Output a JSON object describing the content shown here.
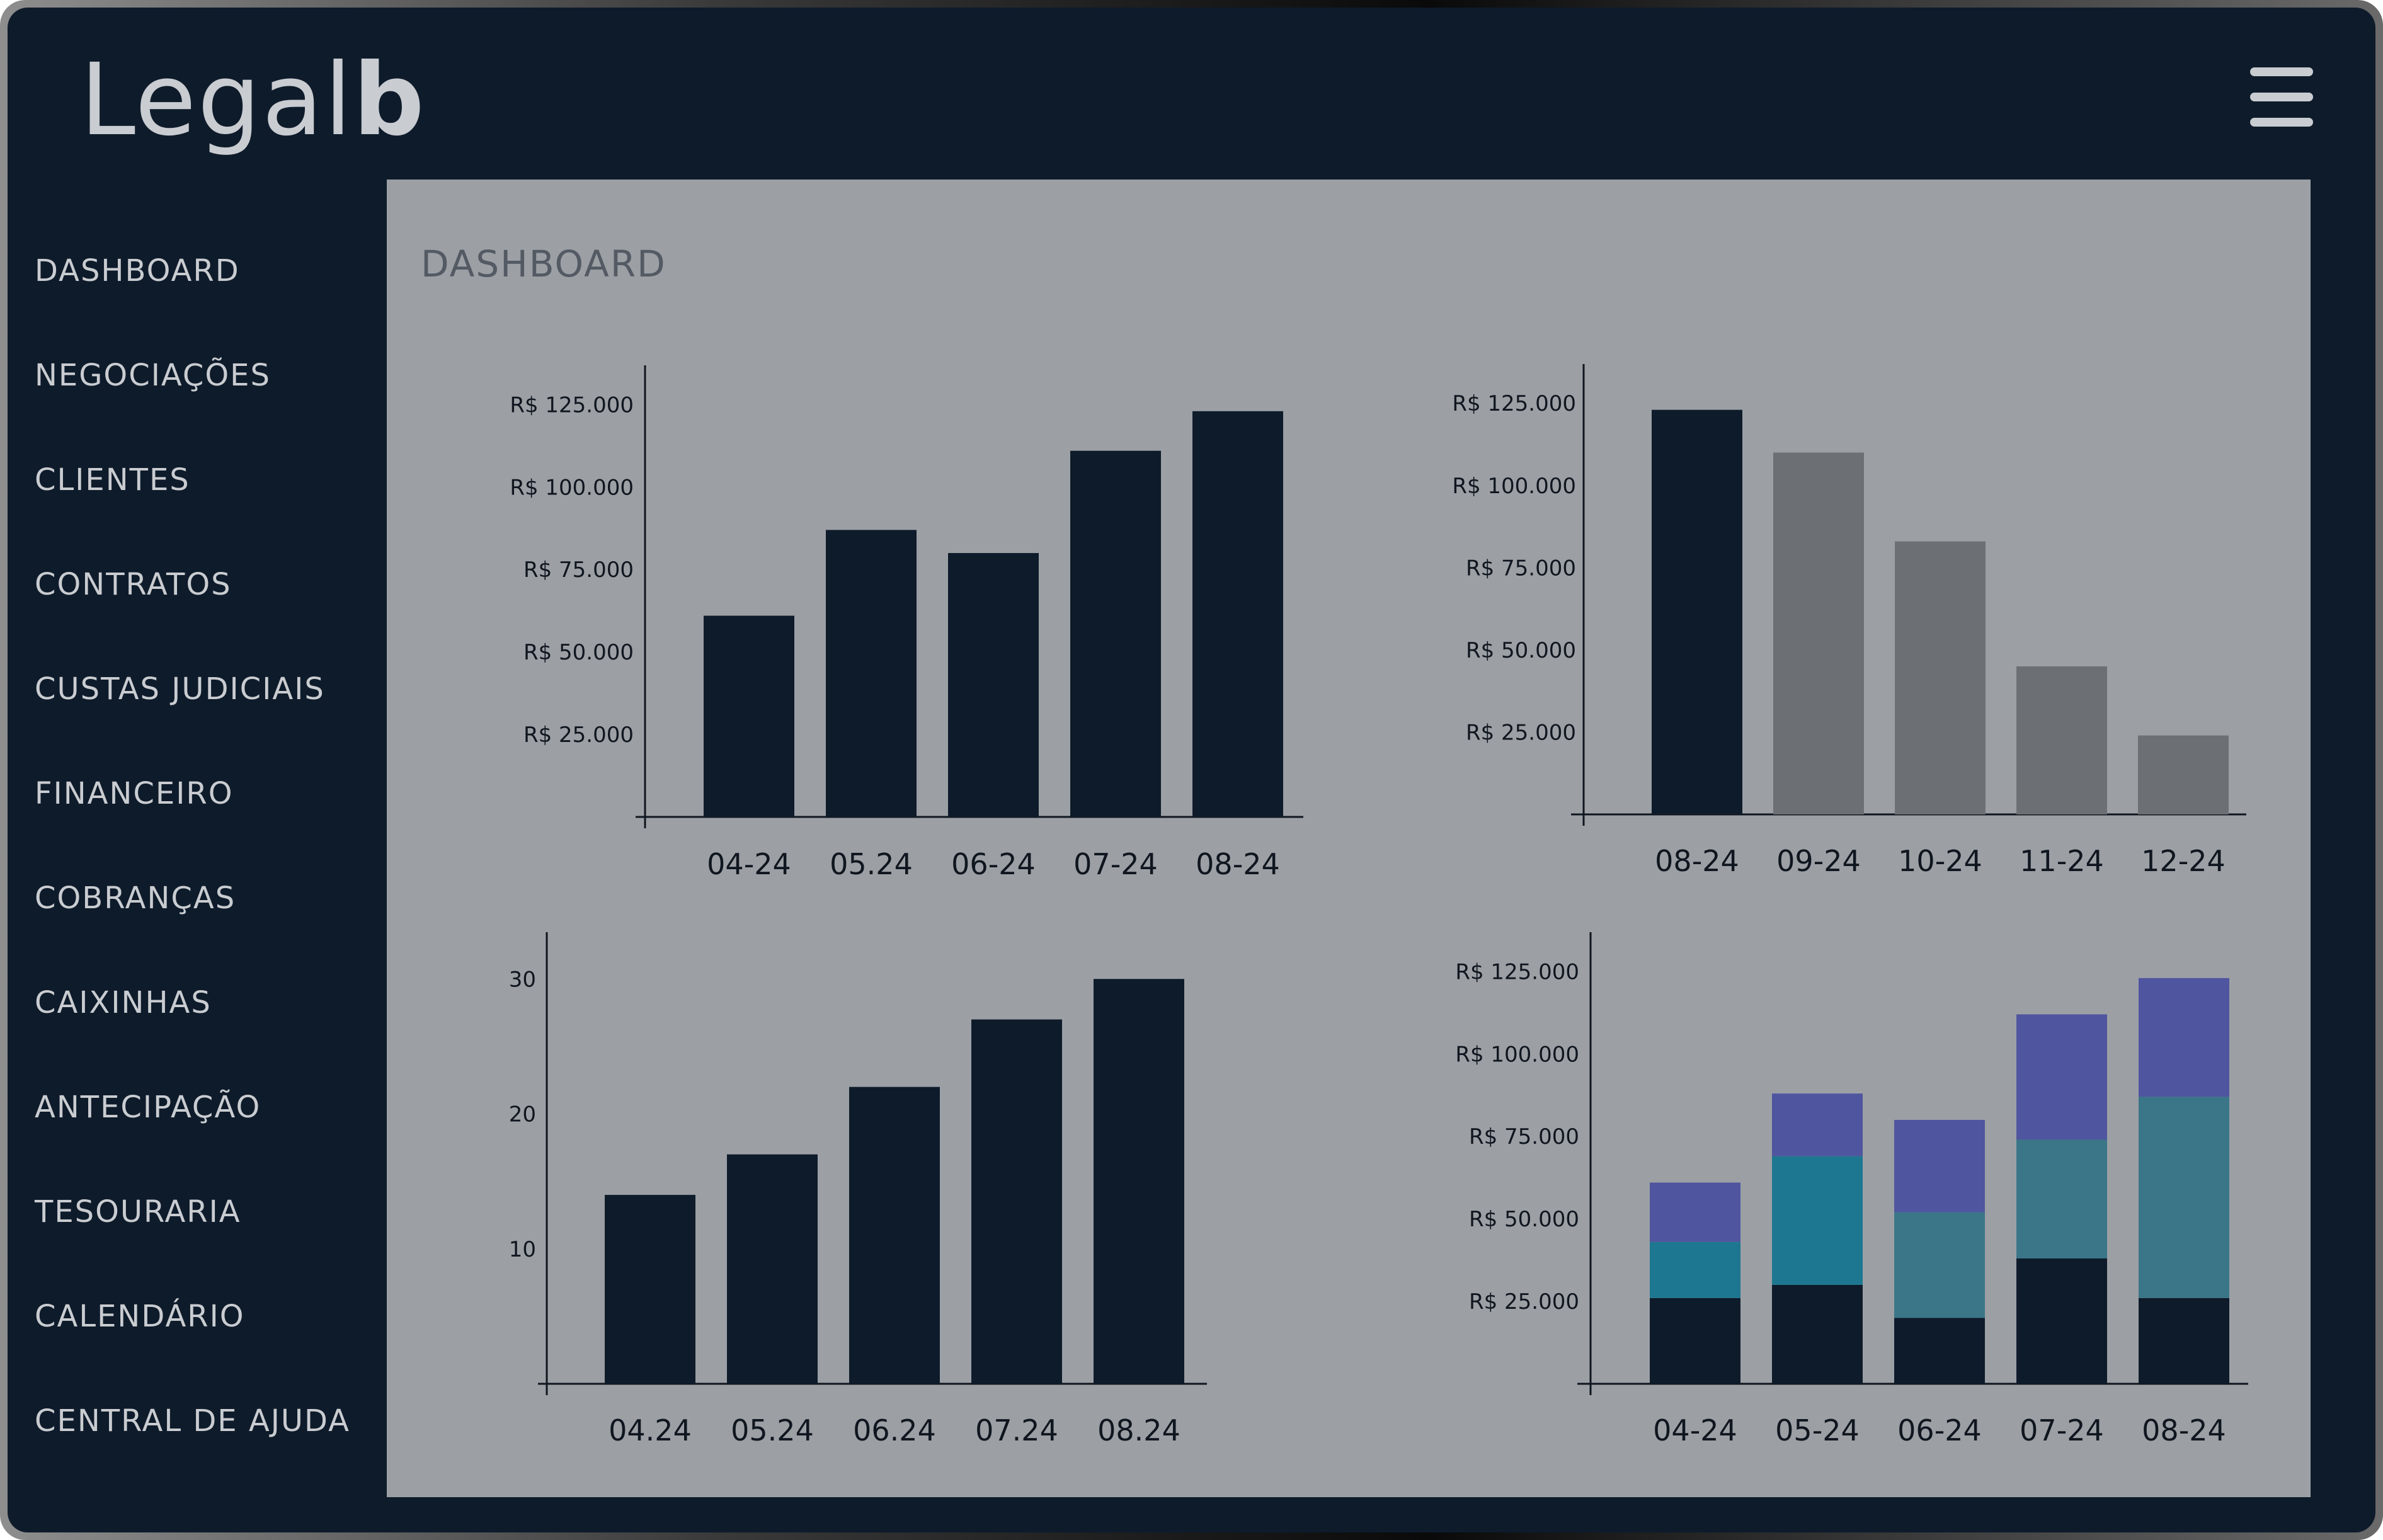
{
  "app": {
    "logo_text": "Legal",
    "logo_bold": "b",
    "menu_icon": "hamburger-icon"
  },
  "sidebar": {
    "items": [
      {
        "label": "DASHBOARD"
      },
      {
        "label": "NEGOCIAÇÕES"
      },
      {
        "label": "CLIENTES"
      },
      {
        "label": "CONTRATOS"
      },
      {
        "label": "CUSTAS JUDICIAIS"
      },
      {
        "label": "FINANCEIRO"
      },
      {
        "label": "COBRANÇAS"
      },
      {
        "label": "CAIXINHAS"
      },
      {
        "label": "ANTECIPAÇÃO"
      },
      {
        "label": "TESOURARIA"
      },
      {
        "label": "CALENDÁRIO"
      },
      {
        "label": "CENTRAL DE AJUDA"
      }
    ]
  },
  "main": {
    "title": "DASHBOARD"
  },
  "colors": {
    "background": "#0e1b2b",
    "content_bg": "#9ca0a5",
    "bar_dark": "#0e1b2b",
    "bar_gray": "#6c6f74",
    "stack_purple": "#4f559e",
    "stack_teal": "#1d7790",
    "stack_teal_muted": "#3a7688"
  },
  "chart_data": [
    {
      "type": "bar",
      "categories": [
        "04-24",
        "05.24",
        "06-24",
        "07-24",
        "08-24"
      ],
      "values": [
        61000,
        87000,
        80000,
        111000,
        123000
      ],
      "ylim": [
        0,
        135000
      ],
      "yticks": [
        25000,
        50000,
        75000,
        100000,
        125000
      ],
      "ytick_labels": [
        "R$ 25.000",
        "R$ 50.000",
        "R$ 75.000",
        "R$ 100.000",
        "R$ 125.000"
      ],
      "colors": [
        "#0e1b2b",
        "#0e1b2b",
        "#0e1b2b",
        "#0e1b2b",
        "#0e1b2b"
      ]
    },
    {
      "type": "bar",
      "categories": [
        "08-24",
        "09-24",
        "10-24",
        "11-24",
        "12-24"
      ],
      "values": [
        123000,
        110000,
        83000,
        45000,
        24000
      ],
      "ylim": [
        0,
        135000
      ],
      "yticks": [
        25000,
        50000,
        75000,
        100000,
        125000
      ],
      "ytick_labels": [
        "R$ 25.000",
        "R$ 50.000",
        "R$ 75.000",
        "R$ 100.000",
        "R$ 125.000"
      ],
      "colors": [
        "#0e1b2b",
        "#6c6f74",
        "#6c6f74",
        "#6c6f74",
        "#6c6f74"
      ]
    },
    {
      "type": "bar",
      "categories": [
        "04.24",
        "05.24",
        "06.24",
        "07.24",
        "08.24"
      ],
      "values": [
        14,
        17,
        22,
        27,
        30
      ],
      "ylim": [
        0,
        33
      ],
      "yticks": [
        10,
        20,
        30
      ],
      "ytick_labels": [
        "10",
        "20",
        "30"
      ],
      "colors": [
        "#0e1b2b",
        "#0e1b2b",
        "#0e1b2b",
        "#0e1b2b",
        "#0e1b2b"
      ]
    },
    {
      "type": "bar",
      "stacked": true,
      "categories": [
        "04-24",
        "05-24",
        "06-24",
        "07-24",
        "08-24"
      ],
      "series": [
        {
          "values": [
            26000,
            30000,
            20000,
            38000,
            26000
          ],
          "color": "#0e1b2b"
        },
        {
          "values": [
            17000,
            39000,
            32000,
            36000,
            61000
          ],
          "color": "#1d7790"
        },
        {
          "values": [
            18000,
            19000,
            28000,
            38000,
            36000
          ],
          "color": "#4f559e"
        }
      ],
      "segment_colors": [
        [
          "#0e1b2b",
          "#1d7790",
          "#4f559e"
        ],
        [
          "#0e1b2b",
          "#1d7790",
          "#4f559e"
        ],
        [
          "#0e1b2b",
          "#3a7688",
          "#4f559e"
        ],
        [
          "#0e1b2b",
          "#3a7688",
          "#4f559e"
        ],
        [
          "#0e1b2b",
          "#3a7688",
          "#4f559e"
        ]
      ],
      "ylim": [
        0,
        135000
      ],
      "yticks": [
        25000,
        50000,
        75000,
        100000,
        125000
      ],
      "ytick_labels": [
        "R$ 25.000",
        "R$ 50.000",
        "R$ 75.000",
        "R$ 100.000",
        "R$ 125.000"
      ]
    }
  ]
}
